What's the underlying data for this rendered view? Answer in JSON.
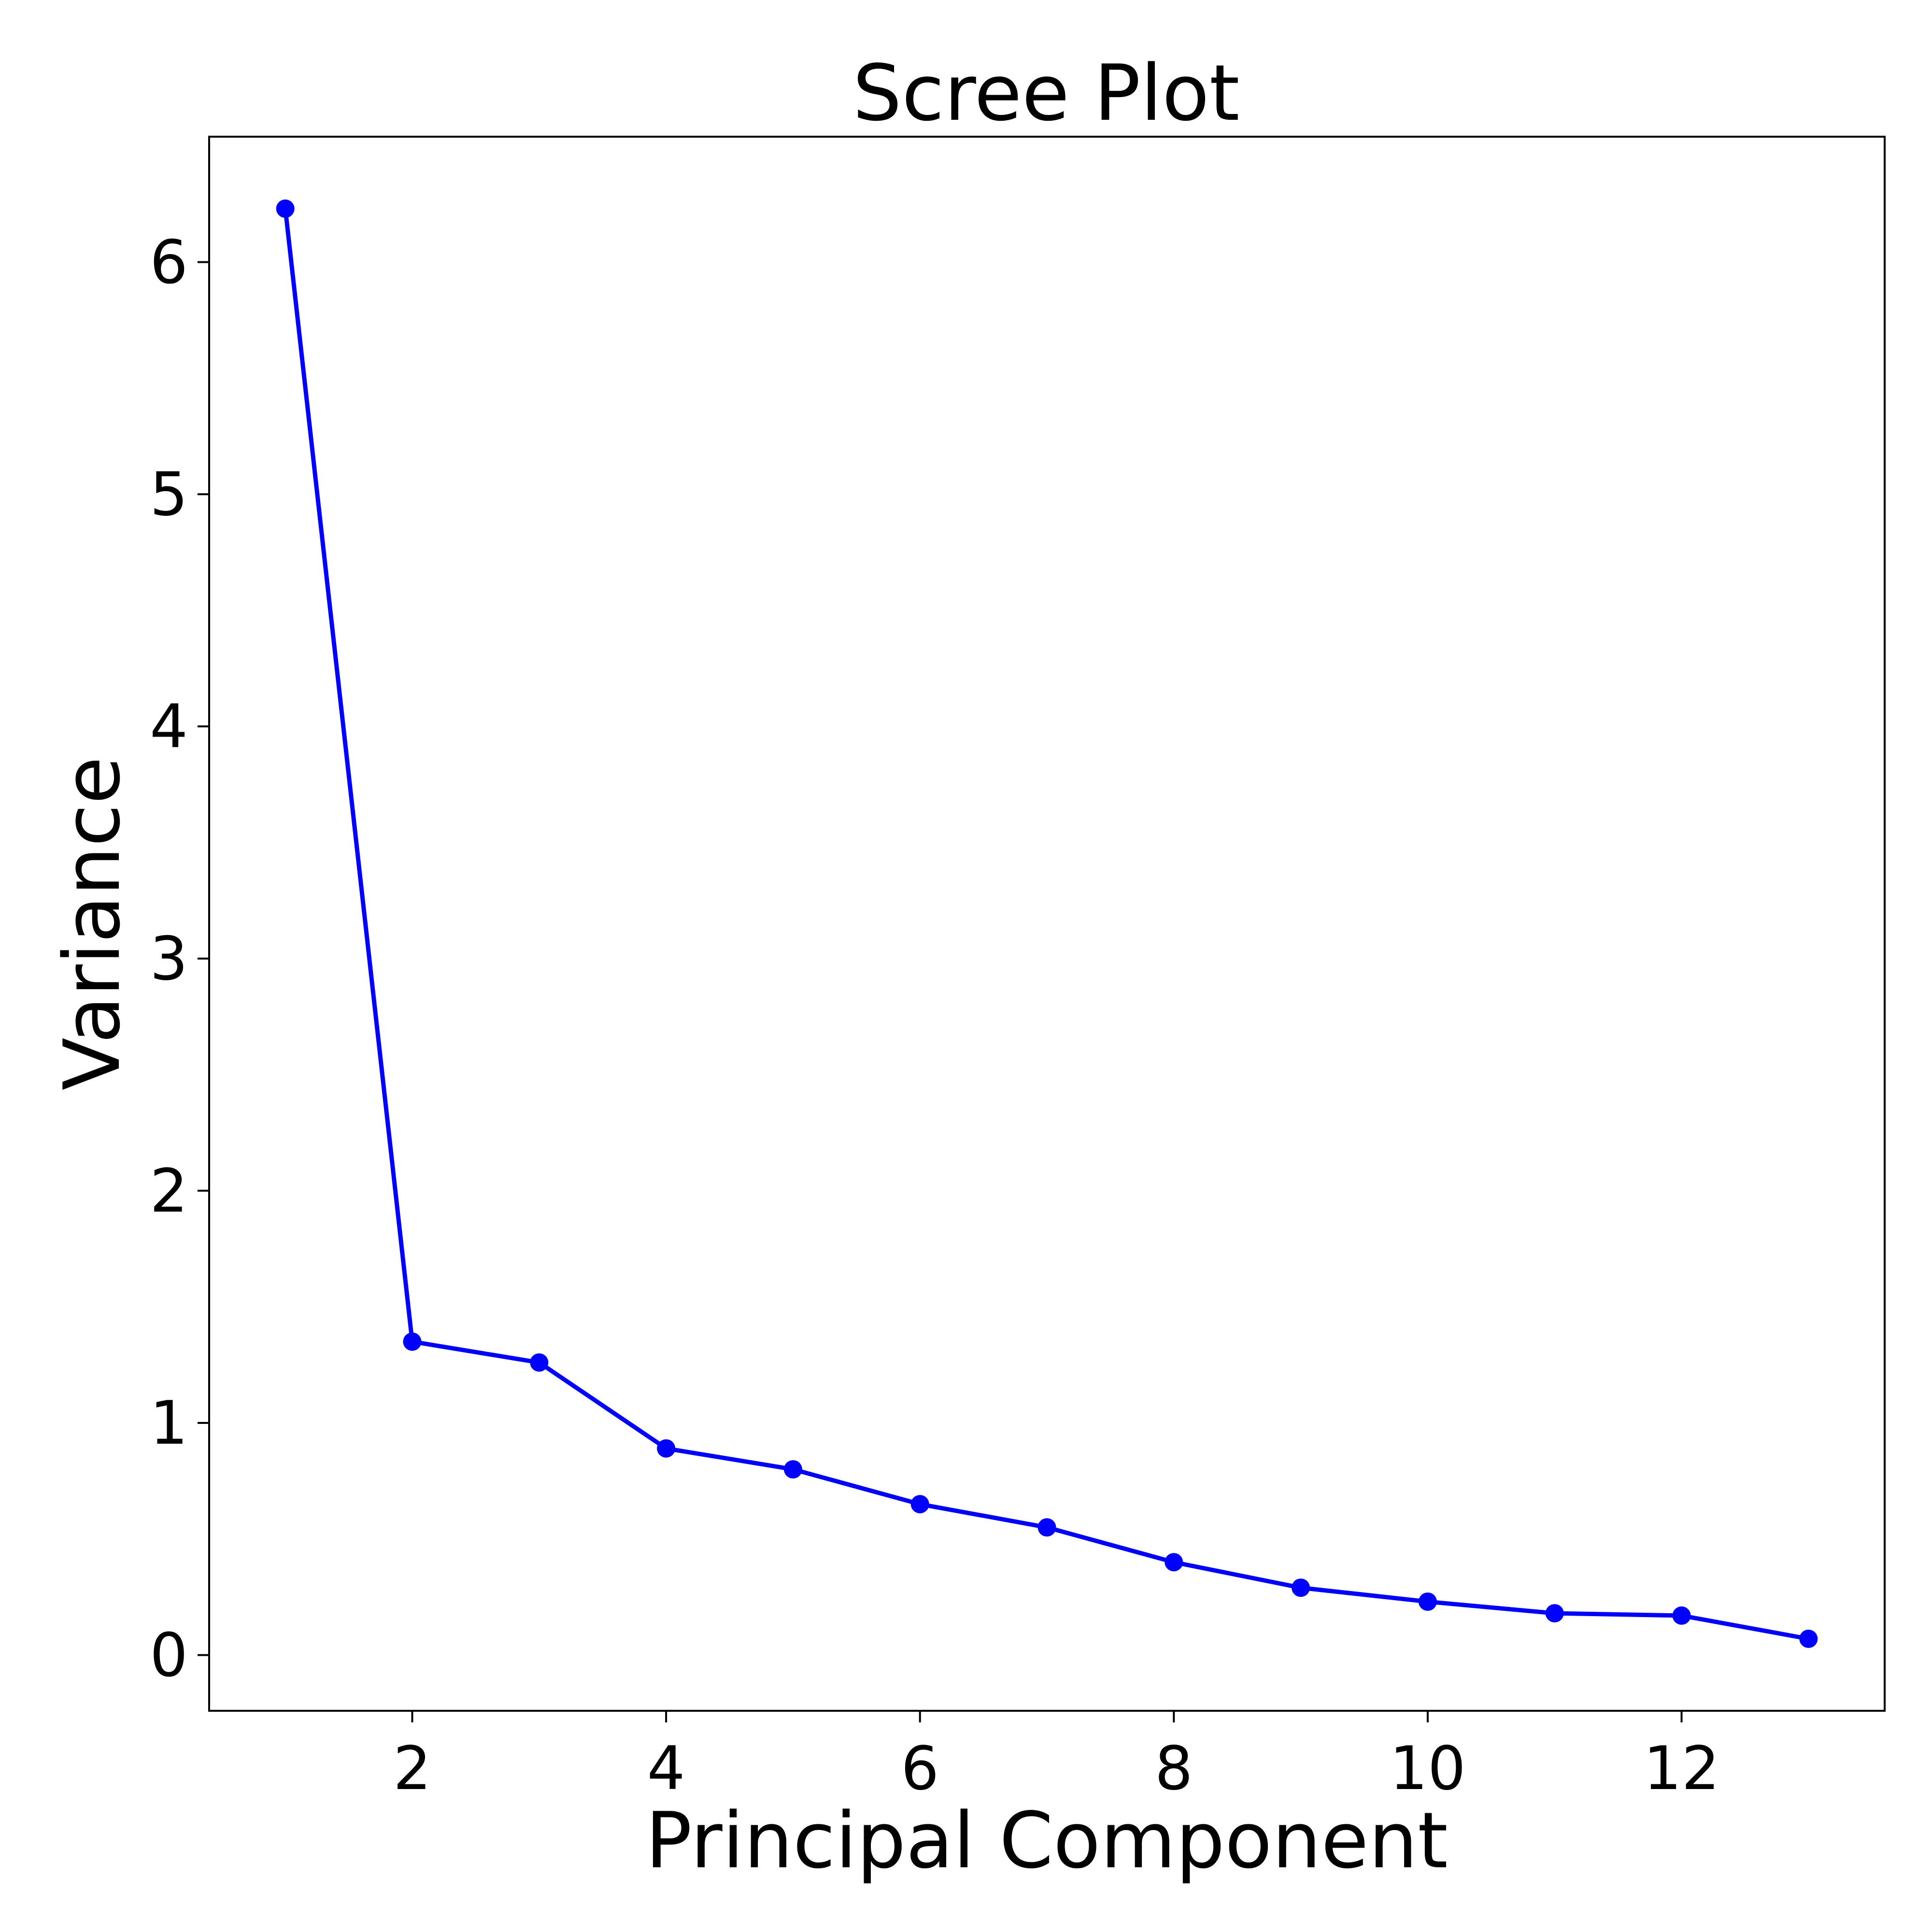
{
  "chart_data": {
    "type": "line",
    "title": "Scree Plot",
    "xlabel": "Principal Component",
    "ylabel": "Variance",
    "x": [
      1,
      2,
      3,
      4,
      5,
      6,
      7,
      8,
      9,
      10,
      11,
      12,
      13
    ],
    "series": [
      {
        "values": [
          6.23,
          1.35,
          1.26,
          0.89,
          0.8,
          0.65,
          0.55,
          0.4,
          0.29,
          0.23,
          0.18,
          0.17,
          0.07
        ],
        "color": "#0000ff",
        "marker": "circle"
      }
    ],
    "xticks": [
      2,
      4,
      6,
      8,
      10,
      12
    ],
    "yticks": [
      0,
      1,
      2,
      3,
      4,
      5,
      6
    ],
    "xlim": [
      0.4,
      13.6
    ],
    "ylim": [
      -0.24,
      6.54
    ],
    "grid": false,
    "legend": false
  }
}
